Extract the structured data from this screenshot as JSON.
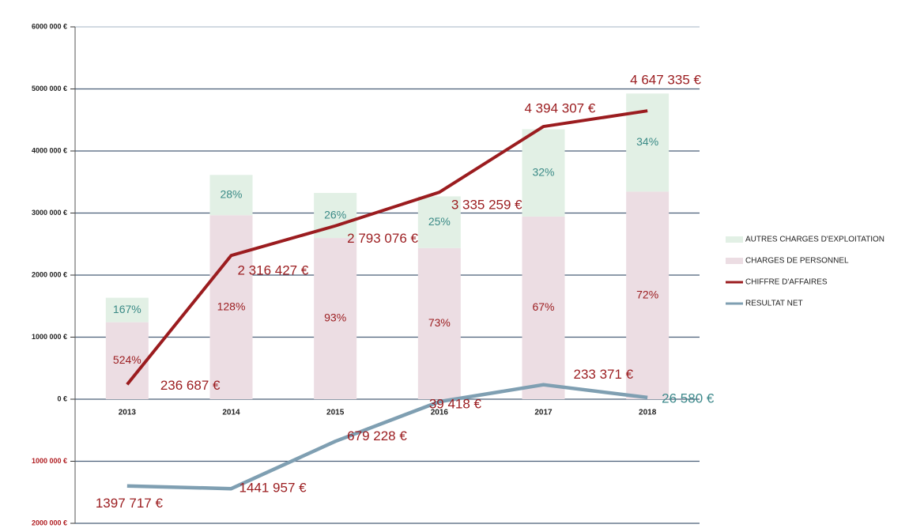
{
  "chart_data": {
    "type": "bar-line",
    "categories": [
      "2013",
      "2014",
      "2015",
      "2016",
      "2017",
      "2018"
    ],
    "ylim": [
      -2000000,
      6000000
    ],
    "yticks": [
      {
        "value": -2000000,
        "label": "2000 000 €"
      },
      {
        "value": -1000000,
        "label": "1000 000 €"
      },
      {
        "value": 0,
        "label": "0 €"
      },
      {
        "value": 1000000,
        "label": "1000 000 €"
      },
      {
        "value": 2000000,
        "label": "2000 000 €"
      },
      {
        "value": 3000000,
        "label": "3000 000 €"
      },
      {
        "value": 4000000,
        "label": "4000 000 €"
      },
      {
        "value": 5000000,
        "label": "5000 000 €"
      },
      {
        "value": 6000000,
        "label": "6000 000 €"
      }
    ],
    "grid": true,
    "legend": "right",
    "series": [
      {
        "name": "CHARGES DE PERSONNEL",
        "kind": "bar",
        "color": "#ecdde3",
        "values": [
          1240000,
          2965000,
          2598000,
          2435000,
          2944000,
          3346000
        ],
        "percent_labels": [
          "524%",
          "128%",
          "93%",
          "73%",
          "67%",
          "72%"
        ],
        "label_color": "#9b1c1f"
      },
      {
        "name": "AUTRES CHARGES D'EXPLOITATION",
        "kind": "bar",
        "color": "#e2f0e5",
        "values": [
          395000,
          649000,
          726000,
          834000,
          1406000,
          1580000
        ],
        "percent_labels": [
          "167%",
          "28%",
          "26%",
          "25%",
          "32%",
          "34%"
        ],
        "label_color": "#3a8a86"
      },
      {
        "name": "CHIFFRE D'AFFAIRES",
        "kind": "line",
        "color": "#9b1c1f",
        "values": [
          236687,
          2316427,
          2793076,
          3335259,
          4394307,
          4647335
        ],
        "value_labels": [
          "236 687 €",
          "2 316 427 €",
          "2 793 076 €",
          "3 335 259 €",
          "4 394 307 €",
          "4 647 335 €"
        ],
        "label_color": "#9b1c1f"
      },
      {
        "name": "RESULTAT NET",
        "kind": "line",
        "color": "#7f9fb2",
        "values": [
          -1397717,
          -1441957,
          -679228,
          -39418,
          233371,
          26580
        ],
        "value_labels": [
          "1397 717 €",
          "1441 957 €",
          "679 228 €",
          "39 418 €",
          "233 371 €",
          "26 580 €"
        ],
        "label_color": "#9b1c1f"
      }
    ]
  }
}
